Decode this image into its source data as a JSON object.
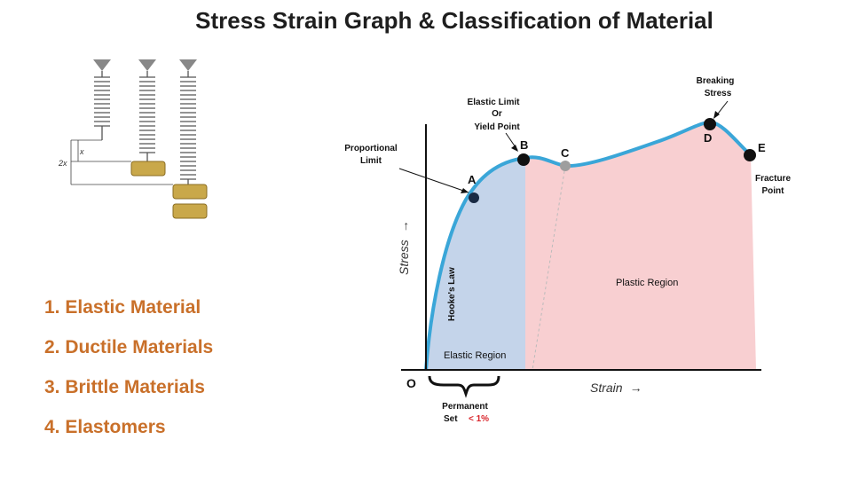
{
  "title": "Stress Strain Graph  &  Classification of Material",
  "springs": {
    "label_x": "x",
    "label_2x": "2x"
  },
  "materials": [
    "1. Elastic Material",
    "2. Ductile Materials",
    "3. Brittle Materials",
    "4. Elastomers"
  ],
  "graph": {
    "y_axis_label": "Stress",
    "y_arrow": "→",
    "x_axis_label": "Strain",
    "x_arrow": "→",
    "origin": "O",
    "points": {
      "a": "A",
      "b": "B",
      "c": "C",
      "d": "D",
      "e": "E"
    },
    "proportional_limit": [
      "Proportional",
      "Limit"
    ],
    "elastic_limit": [
      "Elastic Limit",
      "Or",
      "Yield Point"
    ],
    "breaking_stress": [
      "Breaking",
      "Stress"
    ],
    "fracture_point": [
      "Fracture",
      "Point"
    ],
    "hookes_law": "Hooke's Law",
    "elastic_region": "Elastic  Region",
    "plastic_region": "Plastic Region",
    "permanent_set": "Permanent",
    "set_label": "Set",
    "set_value": "< 1%",
    "colors": {
      "curve": "#3aa6d8",
      "elastic_fill": "#c4d4ea",
      "plastic_fill": "#f8cfd1",
      "set_value": "#d9262c",
      "weight": "#c9a84a"
    }
  }
}
